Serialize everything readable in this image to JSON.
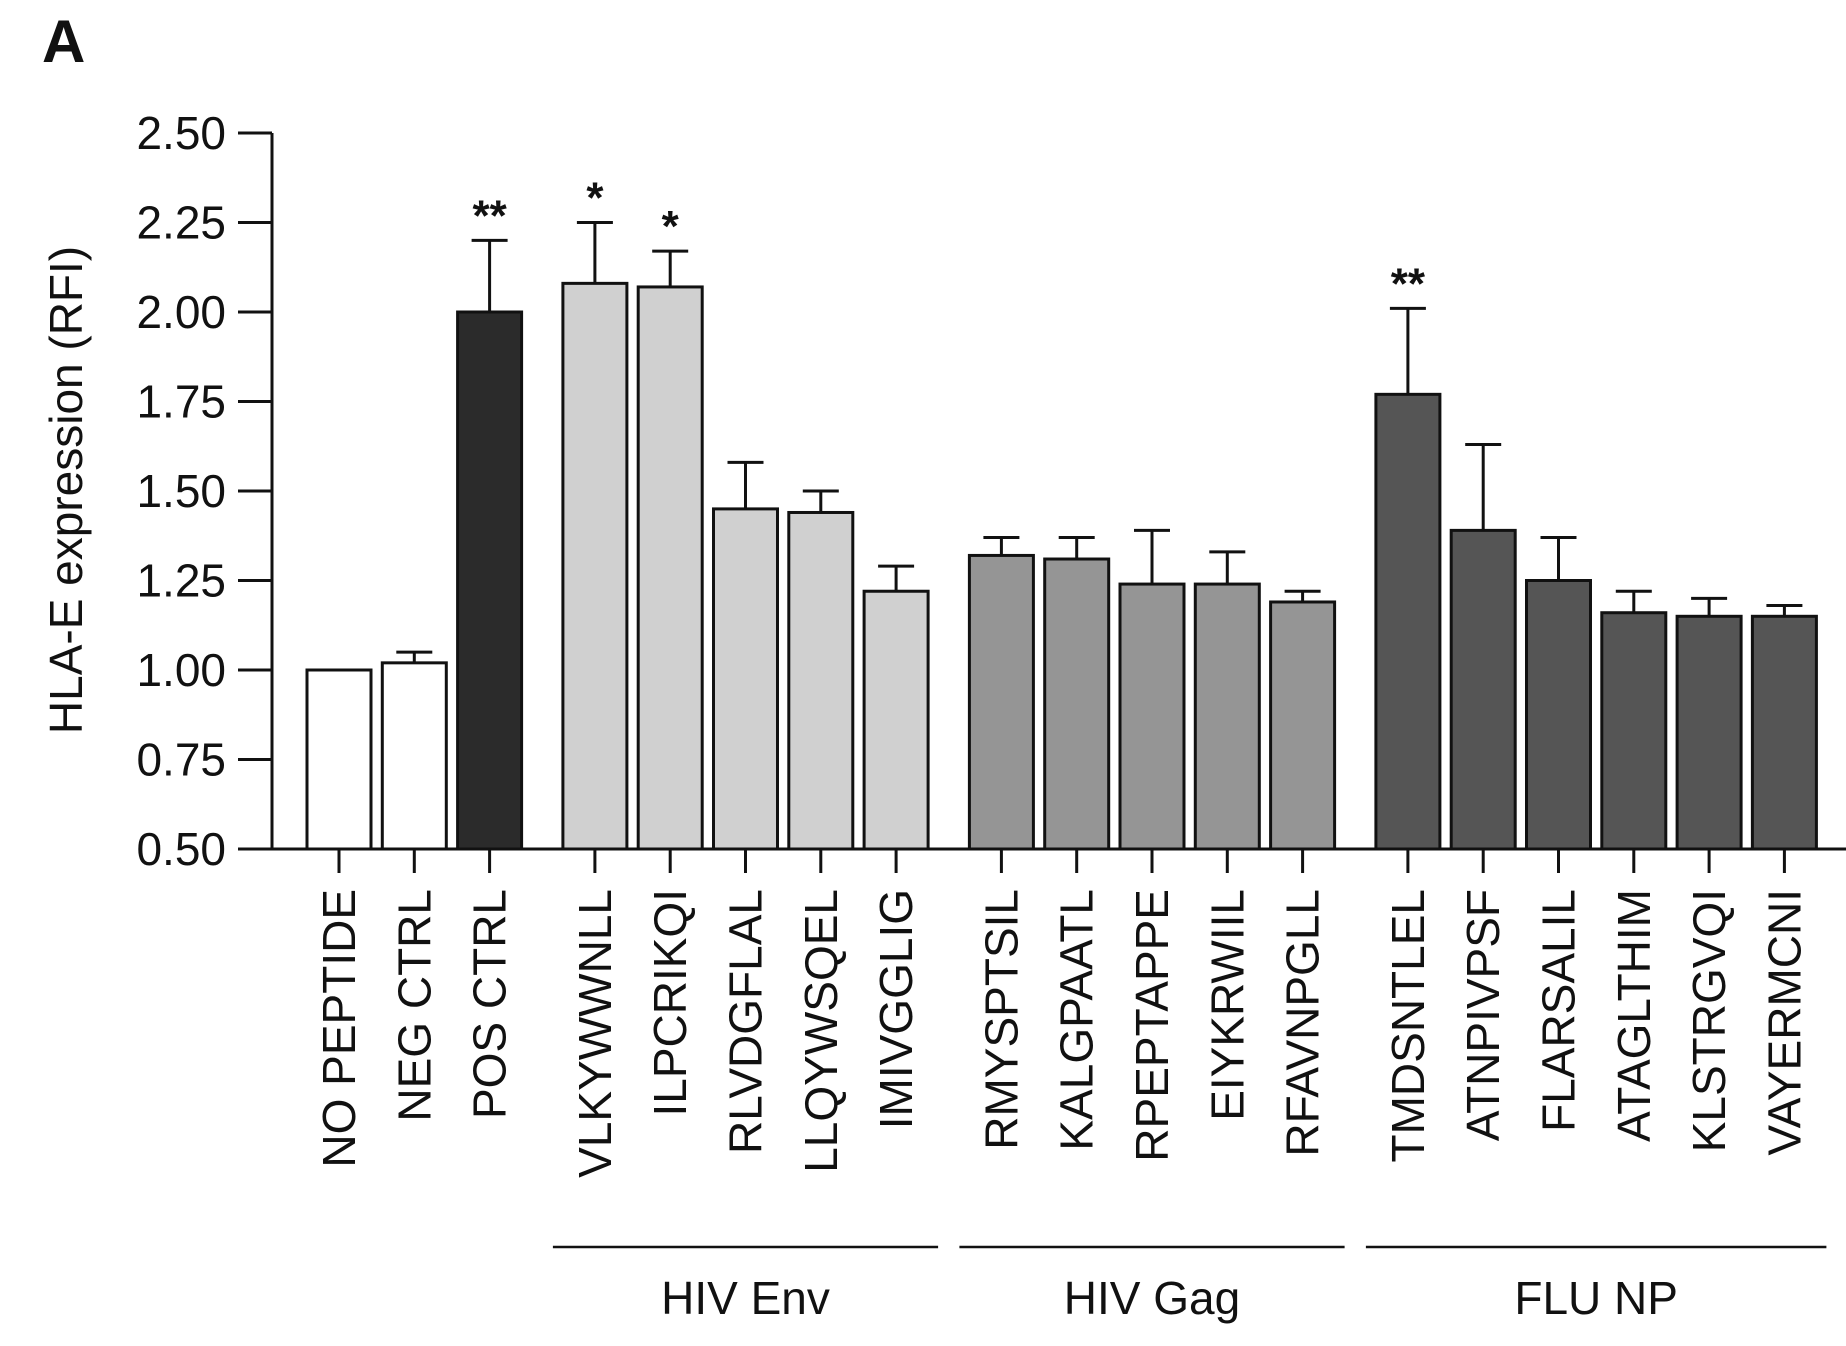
{
  "panel_label": "A",
  "colors": {
    "control_none": "#ffffff",
    "control_pos": "#2b2b2b",
    "hiv_env": "#d0d0d0",
    "hiv_gag": "#959595",
    "flu_np": "#555555",
    "stroke": "#111111"
  },
  "chart_data": {
    "type": "bar",
    "title": "",
    "xlabel": "",
    "ylabel": "HLA-E expression (RFI)",
    "ylim": [
      0.5,
      2.5
    ],
    "yticks": [
      "2.50",
      "2.25",
      "2.00",
      "1.75",
      "1.50",
      "1.25",
      "1.00",
      "0.75",
      "0.50"
    ],
    "ytick_values": [
      2.5,
      2.25,
      2.0,
      1.75,
      1.5,
      1.25,
      1.0,
      0.75,
      0.5
    ],
    "grid": false,
    "categories": [
      "NO PEPTIDE",
      "NEG CTRL",
      "POS CTRL",
      "VLKYWWNLL",
      "ILPCRIKQI",
      "RLVDGFLAL",
      "LLQYWSQEL",
      "IMIVGGLIG",
      "RMYSPTSIL",
      "KALGPAATL",
      "RPEPTAPPE",
      "EIYKRWIIL",
      "RFAVNPGLL",
      "TMDSNTLEL",
      "ATNPIVPSF",
      "FLARSALIL",
      "ATAGLTHIM",
      "KLSTRGVQI",
      "VAYERMCNI"
    ],
    "values": [
      1.0,
      1.02,
      2.0,
      2.08,
      2.07,
      1.45,
      1.44,
      1.22,
      1.32,
      1.31,
      1.24,
      1.24,
      1.19,
      1.77,
      1.39,
      1.25,
      1.16,
      1.15,
      1.15
    ],
    "error_upper": [
      1.0,
      1.05,
      2.2,
      2.25,
      2.17,
      1.58,
      1.5,
      1.29,
      1.37,
      1.37,
      1.39,
      1.33,
      1.22,
      2.01,
      1.63,
      1.37,
      1.22,
      1.2,
      1.18
    ],
    "significance": [
      "",
      "",
      "**",
      "*",
      "*",
      "",
      "",
      "",
      "",
      "",
      "",
      "",
      "",
      "**",
      "",
      "",
      "",
      "",
      ""
    ],
    "bar_groups": [
      "control_none",
      "control_none",
      "control_pos",
      "hiv_env",
      "hiv_env",
      "hiv_env",
      "hiv_env",
      "hiv_env",
      "hiv_gag",
      "hiv_gag",
      "hiv_gag",
      "hiv_gag",
      "hiv_gag",
      "flu_np",
      "flu_np",
      "flu_np",
      "flu_np",
      "flu_np",
      "flu_np"
    ],
    "groups": [
      {
        "name": "HIV Env",
        "start": 3,
        "end": 7
      },
      {
        "name": "HIV Gag",
        "start": 8,
        "end": 12
      },
      {
        "name": "FLU NP",
        "start": 13,
        "end": 18
      }
    ]
  }
}
